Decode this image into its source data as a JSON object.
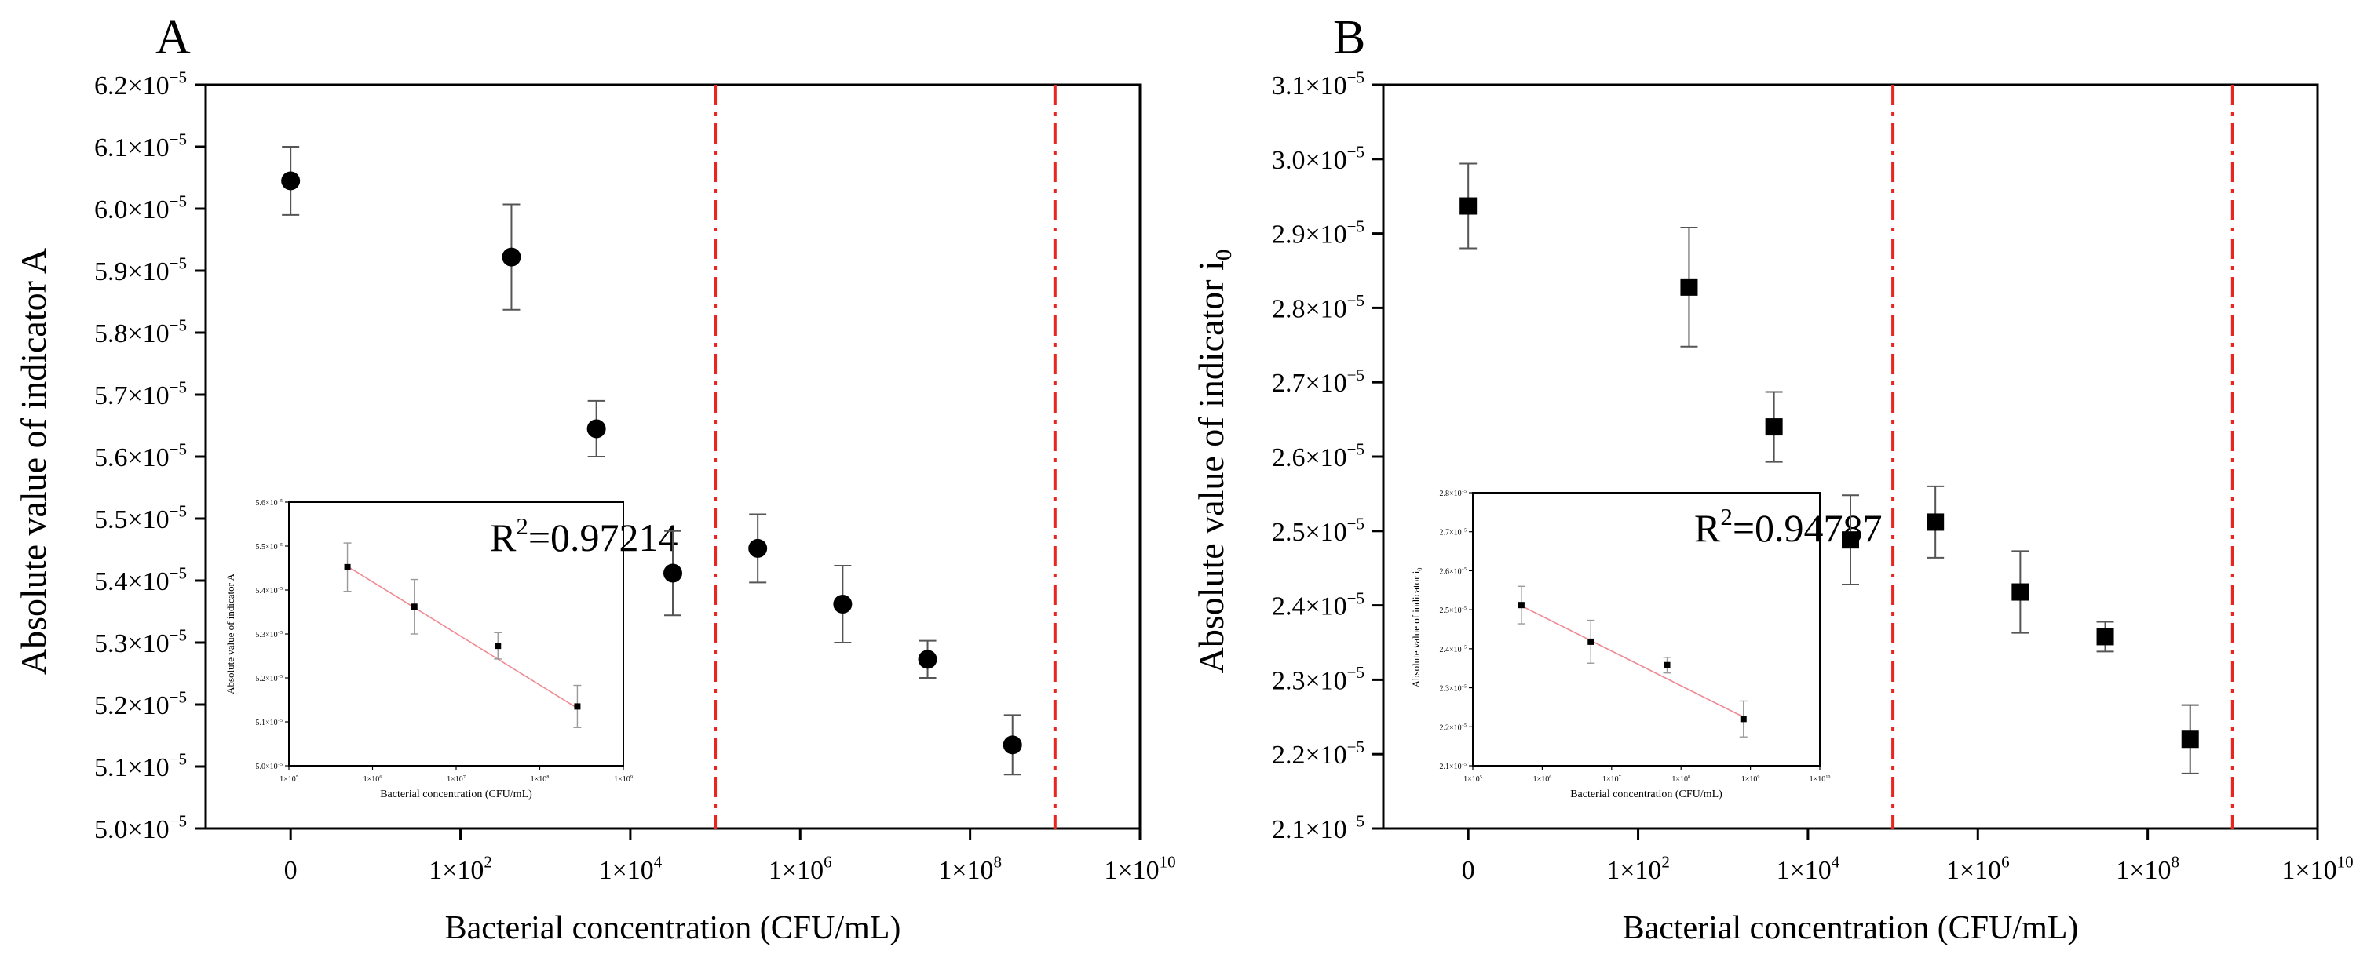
{
  "chart_data": [
    {
      "type": "scatter",
      "panel_label": "A",
      "marker": "circle",
      "xlabel": "Bacterial concentration (CFU/mL)",
      "ylabel": "Absolute value of indicator A",
      "xlim": [
        -0.5,
        5.0
      ],
      "ylim": [
        5e-05,
        6.2e-05
      ],
      "x_ticks": [
        0,
        1,
        2,
        3,
        4,
        5
      ],
      "x_tick_labels": [
        {
          "base": "0",
          "exp": ""
        },
        {
          "base": "1×10",
          "exp": "2"
        },
        {
          "base": "1×10",
          "exp": "4"
        },
        {
          "base": "1×10",
          "exp": "6"
        },
        {
          "base": "1×10",
          "exp": "8"
        },
        {
          "base": "1×10",
          "exp": "10"
        }
      ],
      "y_ticks": [
        5.0,
        5.1,
        5.2,
        5.3,
        5.4,
        5.5,
        5.6,
        5.7,
        5.8,
        5.9,
        6.0,
        6.1,
        6.2
      ],
      "y_tick_labels": [
        "5.0×10",
        "5.1×10",
        "5.2×10",
        "5.3×10",
        "5.4×10",
        "5.5×10",
        "5.6×10",
        "5.7×10",
        "5.8×10",
        "5.9×10",
        "6.0×10",
        "6.1×10",
        "6.2×10"
      ],
      "y_tick_exponent": "−5",
      "y_scale": 1e-05,
      "points": [
        {
          "x": 0.0,
          "y": 6.045,
          "err": 0.055
        },
        {
          "x": 1.3,
          "y": 5.922,
          "err": 0.085
        },
        {
          "x": 1.8,
          "y": 5.645,
          "err": 0.045
        },
        {
          "x": 2.25,
          "y": 5.412,
          "err": 0.068
        },
        {
          "x": 2.75,
          "y": 5.452,
          "err": 0.055
        },
        {
          "x": 3.25,
          "y": 5.362,
          "err": 0.062
        },
        {
          "x": 3.75,
          "y": 5.273,
          "err": 0.03
        },
        {
          "x": 4.25,
          "y": 5.135,
          "err": 0.048
        }
      ],
      "vlines": [
        2.5,
        4.5
      ],
      "inset": {
        "annotation_base": "R",
        "annotation_sup": "2",
        "annotation_value": "=0.97214",
        "xlabel": "Bacterial concentration (CFU/mL)",
        "ylabel": "Absolute value of indicator A",
        "xlim": [
          5,
          9
        ],
        "ylim": [
          5.0,
          5.6
        ],
        "x_ticks": [
          5,
          6,
          7,
          8,
          9
        ],
        "x_tick_labels": [
          "1×10",
          "1×10",
          "1×10",
          "1×10",
          "1×10"
        ],
        "x_tick_exps": [
          "5",
          "6",
          "7",
          "8",
          "9"
        ],
        "y_ticks": [
          5.0,
          5.1,
          5.2,
          5.3,
          5.4,
          5.5,
          5.6
        ],
        "y_tick_labels": [
          "5.0×10",
          "5.1×10",
          "5.2×10",
          "5.3×10",
          "5.4×10",
          "5.5×10",
          "5.6×10"
        ],
        "y_tick_exponent": "−5",
        "points": [
          {
            "x": 5.7,
            "y": 5.452,
            "err": 0.055
          },
          {
            "x": 6.5,
            "y": 5.362,
            "err": 0.062
          },
          {
            "x": 7.5,
            "y": 5.273,
            "err": 0.03
          },
          {
            "x": 8.45,
            "y": 5.135,
            "err": 0.048
          }
        ],
        "fit": [
          [
            5.7,
            5.454
          ],
          [
            8.45,
            5.131
          ]
        ]
      }
    },
    {
      "type": "scatter",
      "panel_label": "B",
      "marker": "square",
      "xlabel": "Bacterial concentration (CFU/mL)",
      "ylabel_base": "Absolute value of indicator i",
      "ylabel_sub": "0",
      "xlim": [
        -0.5,
        5.0
      ],
      "ylim": [
        2.1e-05,
        3.1e-05
      ],
      "x_ticks": [
        0,
        1,
        2,
        3,
        4,
        5
      ],
      "x_tick_labels": [
        {
          "base": "0",
          "exp": ""
        },
        {
          "base": "1×10",
          "exp": "2"
        },
        {
          "base": "1×10",
          "exp": "4"
        },
        {
          "base": "1×10",
          "exp": "6"
        },
        {
          "base": "1×10",
          "exp": "8"
        },
        {
          "base": "1×10",
          "exp": "10"
        }
      ],
      "y_ticks": [
        2.1,
        2.2,
        2.3,
        2.4,
        2.5,
        2.6,
        2.7,
        2.8,
        2.9,
        3.0,
        3.1
      ],
      "y_tick_labels": [
        "2.1×10",
        "2.2×10",
        "2.3×10",
        "2.4×10",
        "2.5×10",
        "2.6×10",
        "2.7×10",
        "2.8×10",
        "2.9×10",
        "3.0×10",
        "3.1×10"
      ],
      "y_tick_exponent": "−5",
      "y_scale": 1e-05,
      "points": [
        {
          "x": 0.0,
          "y": 2.937,
          "err": 0.057
        },
        {
          "x": 1.3,
          "y": 2.828,
          "err": 0.08
        },
        {
          "x": 1.8,
          "y": 2.64,
          "err": 0.047
        },
        {
          "x": 2.25,
          "y": 2.488,
          "err": 0.06
        },
        {
          "x": 2.75,
          "y": 2.512,
          "err": 0.048
        },
        {
          "x": 3.25,
          "y": 2.418,
          "err": 0.055
        },
        {
          "x": 3.75,
          "y": 2.358,
          "err": 0.02
        },
        {
          "x": 4.25,
          "y": 2.22,
          "err": 0.046
        }
      ],
      "vlines": [
        2.5,
        4.5
      ],
      "inset": {
        "annotation_base": "R",
        "annotation_sup": "2",
        "annotation_value": "=0.94787",
        "xlabel": "Bacterial concentration (CFU/mL)",
        "ylabel_base": "Absolute value of indicator i",
        "ylabel_sub": "0",
        "xlim": [
          5,
          10
        ],
        "ylim": [
          2.1,
          2.8
        ],
        "x_ticks": [
          5,
          6,
          7,
          8,
          9,
          10
        ],
        "x_tick_labels": [
          "1×10",
          "1×10",
          "1×10",
          "1×10",
          "1×10",
          "1×10"
        ],
        "x_tick_exps": [
          "5",
          "6",
          "7",
          "8",
          "9",
          "10"
        ],
        "y_ticks": [
          2.1,
          2.2,
          2.3,
          2.4,
          2.5,
          2.6,
          2.7,
          2.8
        ],
        "y_tick_labels": [
          "2.1×10",
          "2.2×10",
          "2.3×10",
          "2.4×10",
          "2.5×10",
          "2.6×10",
          "2.7×10",
          "2.8×10"
        ],
        "y_tick_exponent": "−5",
        "points": [
          {
            "x": 5.7,
            "y": 2.512,
            "err": 0.048
          },
          {
            "x": 6.7,
            "y": 2.418,
            "err": 0.055
          },
          {
            "x": 7.8,
            "y": 2.358,
            "err": 0.02
          },
          {
            "x": 8.9,
            "y": 2.22,
            "err": 0.046
          }
        ],
        "fit": [
          [
            5.7,
            2.51
          ],
          [
            8.9,
            2.225
          ]
        ]
      }
    }
  ],
  "colors": {
    "axis": "#000000",
    "marker": "#000000",
    "errorbar": "#555555",
    "vline": "#e8251f",
    "fit_line": "#f08a92",
    "inset_errorbar": "#9a9a9a"
  }
}
